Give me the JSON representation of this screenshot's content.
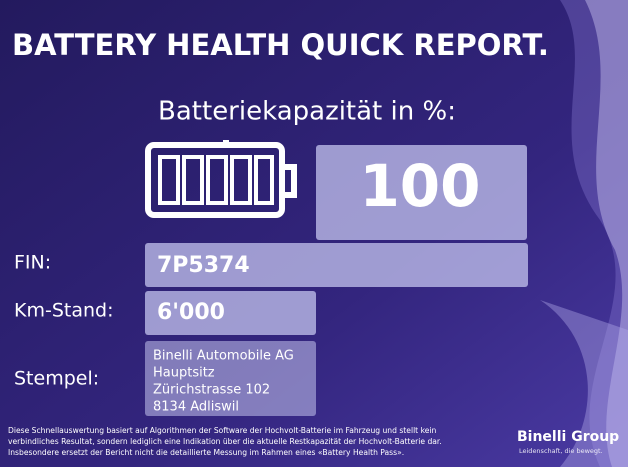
{
  "header": {
    "title": "BATTERY HEALTH QUICK REPORT."
  },
  "capacity": {
    "label": "Batteriekapazität in %:",
    "value": 100
  },
  "fields": [
    {
      "label": "FIN:",
      "value": "7P5374"
    },
    {
      "label": "Km-Stand:",
      "value": "6'000"
    }
  ],
  "stamp": {
    "label": "Stempel:",
    "lines": [
      "Binelli Automobile AG",
      "Hauptsitz",
      "Zürichstrasse 102",
      "8134 Adliswil"
    ]
  },
  "disclaimer": [
    "Diese Schnellauswertung basiert auf Algorithmen der Software der Hochvolt-Batterie im Fahrzeug und stellt kein",
    "verbindliches Resultat, sondern lediglich eine Indikation über die aktuelle Restkapazität der Hochvolt-Batterie dar.",
    "Insbesondere ersetzt der Bericht nicht die detaillierte Messung im Rahmen eines «Battery Health Pass»."
  ],
  "brand": {
    "name": "Binelli Group",
    "tagline": "Leidenschaft, die bewegt."
  }
}
